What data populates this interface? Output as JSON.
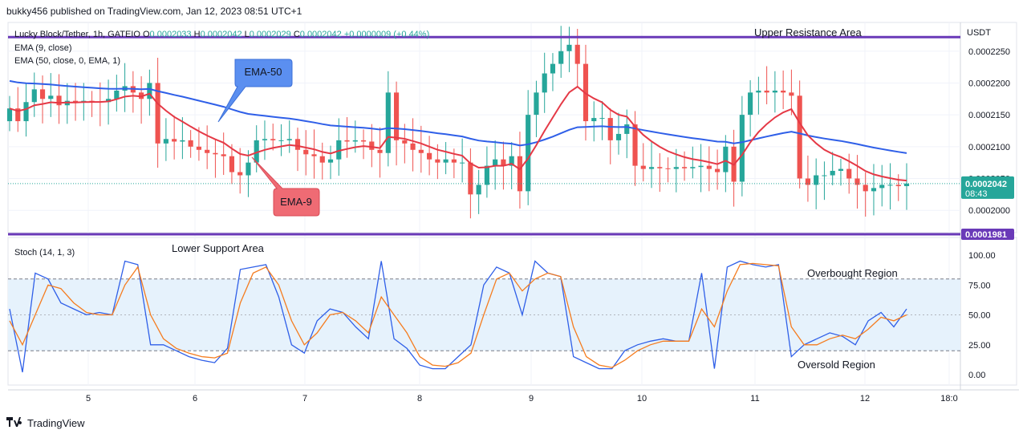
{
  "header": {
    "published": "bukky456 published on TradingView.com, Jan 12, 2023 08:51 UTC+1"
  },
  "legend": {
    "symbol": "Lucky Block/Tether, 1h, GATEIO",
    "ohlc": {
      "o_label": "O",
      "o": "0.0002033",
      "h_label": "H",
      "h": "0.0002042",
      "l_label": "L",
      "l": "0.0002029",
      "c_label": "C",
      "c": "0.0002042",
      "change": "+0.0000009 (+0.44%)"
    },
    "ema9": "EMA (9, close)",
    "ema50": "EMA (50, close, 0, EMA, 1)",
    "stoch": "Stoch (14, 1, 3)"
  },
  "annotations": {
    "upper_resistance": "Upper Resistance Area",
    "lower_support": "Lower Support Area",
    "ema50_callout": "EMA-50",
    "ema9_callout": "EMA-9",
    "overbought": "Overbought Region",
    "oversold": "Oversold Region"
  },
  "price_axis": {
    "currency": "USDT",
    "current_price": "0.0002042",
    "countdown": "08:43",
    "support_price": "0.0001981"
  },
  "footer": {
    "brand": "TradingView"
  },
  "colors": {
    "up": "#26a69a",
    "down": "#ef5350",
    "ema9": "#e53946",
    "ema50": "#2f5fe8",
    "level_line": "#6a3ab8",
    "stoch_k": "#2f5fe8",
    "stoch_d": "#f57c1f",
    "stoch_band": "#e6f2fc",
    "callout_blue": "#5b8ff0",
    "callout_red": "#ef6b74"
  },
  "chart_data": [
    {
      "type": "candlestick",
      "x_axis": {
        "ticks": [
          "5",
          "6",
          "7",
          "8",
          "9",
          "10",
          "11",
          "12",
          "18:0"
        ]
      },
      "y_axis": {
        "ticks": [
          "0.0002250",
          "0.0002200",
          "0.0002150",
          "0.0002100",
          "0.0002050",
          "0.0002000"
        ],
        "range": [
          0.000197,
          0.000229
        ]
      },
      "levels": {
        "upper_resistance": 0.0002272,
        "lower_support": 0.0001981,
        "current": 0.0002042
      },
      "candles_close": [
        0.000216,
        0.000214,
        0.000217,
        0.000219,
        0.0002175,
        0.000218,
        0.0002165,
        0.0002172,
        0.000217,
        0.0002172,
        0.0002171,
        0.000217,
        0.0002175,
        0.0002188,
        0.0002195,
        0.0002185,
        0.0002175,
        0.00022,
        0.0002105,
        0.0002112,
        0.0002108,
        0.000211,
        0.00021,
        0.0002095,
        0.000209,
        0.0002088,
        0.0002085,
        0.000206,
        0.0002055,
        0.0002075,
        0.000211,
        0.0002112,
        0.000211,
        0.000211,
        0.0002112,
        0.0002095,
        0.0002088,
        0.0002085,
        0.0002075,
        0.000208,
        0.000211,
        0.0002108,
        0.000211,
        0.0002108,
        0.0002095,
        0.000209,
        0.0002185,
        0.000211,
        0.0002105,
        0.0002095,
        0.000209,
        0.000208,
        0.0002075,
        0.000208,
        0.0002075,
        0.0002075,
        0.0002025,
        0.000204,
        0.000207,
        0.000208,
        0.000207,
        0.0002085,
        0.000203,
        0.000215,
        0.0002185,
        0.0002215,
        0.000223,
        0.000225,
        0.000226,
        0.000223,
        0.000214,
        0.0002145,
        0.0002145,
        0.000211,
        0.000212,
        0.0002135,
        0.000207,
        0.0002065,
        0.0002068,
        0.0002066,
        0.0002065,
        0.0002068,
        0.0002066,
        0.0002068,
        0.000207,
        0.0002065,
        0.000206,
        0.00021,
        0.0002045,
        0.000215,
        0.0002185,
        0.0002188,
        0.0002185,
        0.0002188,
        0.0002185,
        0.000218,
        0.000205,
        0.000204,
        0.0002055,
        0.0002055,
        0.0002062,
        0.0002065,
        0.000205,
        0.000204,
        0.000203,
        0.0002035,
        0.000204,
        0.000204,
        0.0002038,
        0.0002042
      ]
    },
    {
      "type": "line",
      "name": "Stoch (14, 1, 3)",
      "y_axis": {
        "ticks": [
          "100.00",
          "75.00",
          "50.00",
          "25.00",
          "0.00"
        ],
        "range": [
          0,
          100
        ],
        "overbought": 80,
        "oversold": 20
      },
      "series": [
        {
          "name": "%K",
          "values": [
            55,
            2,
            85,
            80,
            60,
            55,
            50,
            52,
            50,
            95,
            92,
            25,
            25,
            20,
            15,
            12,
            10,
            22,
            88,
            90,
            92,
            65,
            25,
            18,
            45,
            55,
            52,
            40,
            30,
            95,
            30,
            22,
            8,
            5,
            5,
            15,
            25,
            75,
            90,
            85,
            50,
            95,
            85,
            82,
            15,
            10,
            5,
            5,
            20,
            25,
            28,
            30,
            28,
            28,
            85,
            5,
            90,
            95,
            92,
            90,
            92,
            15,
            25,
            30,
            35,
            32,
            25,
            45,
            52,
            40,
            55
          ]
        },
        {
          "name": "%D",
          "values": [
            45,
            25,
            50,
            75,
            72,
            60,
            52,
            50,
            50,
            75,
            90,
            50,
            30,
            22,
            18,
            15,
            14,
            18,
            60,
            85,
            90,
            75,
            45,
            25,
            35,
            50,
            52,
            45,
            35,
            65,
            50,
            35,
            15,
            8,
            7,
            10,
            18,
            50,
            80,
            85,
            70,
            80,
            85,
            82,
            40,
            15,
            8,
            6,
            12,
            20,
            25,
            28,
            28,
            28,
            55,
            40,
            70,
            92,
            93,
            92,
            91,
            40,
            25,
            25,
            30,
            33,
            30,
            38,
            48,
            45,
            50
          ]
        }
      ]
    }
  ]
}
